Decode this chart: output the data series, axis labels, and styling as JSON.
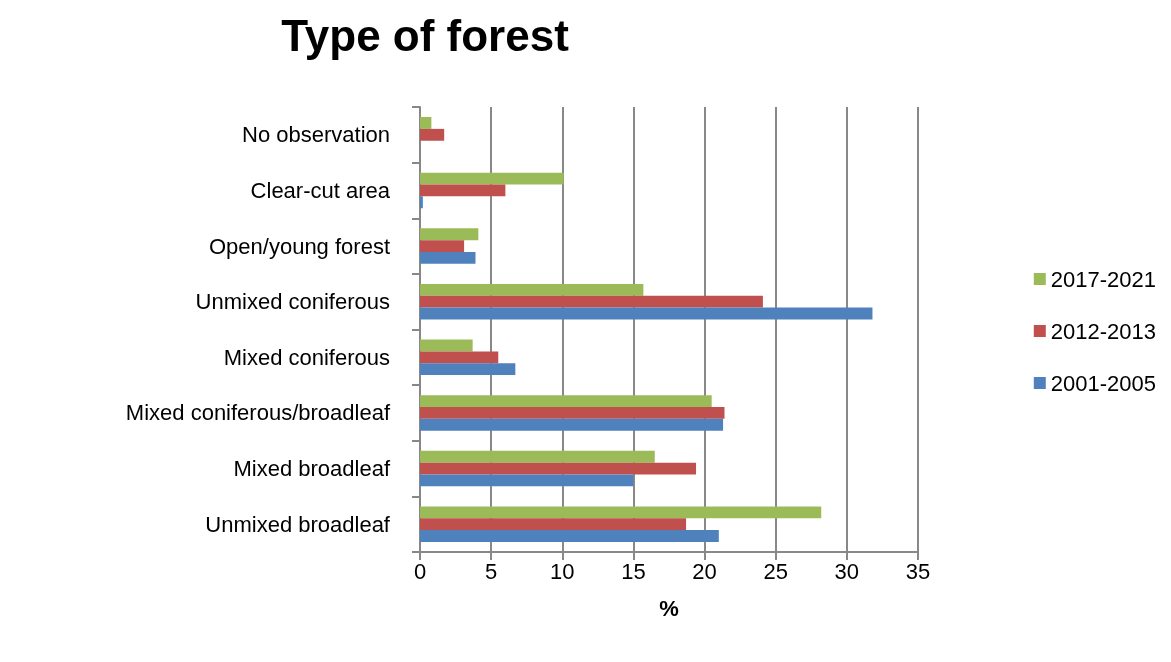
{
  "chart_data": {
    "type": "bar",
    "orientation": "horizontal",
    "title": "Type of forest",
    "xlabel": "%",
    "categories": [
      "No observation",
      "Clear-cut area",
      "Open/young forest",
      "Unmixed coniferous",
      "Mixed coniferous",
      "Mixed coniferous/broadleaf",
      "Mixed broadleaf",
      "Unmixed broadleaf"
    ],
    "series": [
      {
        "name": "2017-2021",
        "color": "#9bbb59",
        "values": [
          0.8,
          10.1,
          4.1,
          15.7,
          3.7,
          20.5,
          16.5,
          28.2
        ]
      },
      {
        "name": "2012-2013",
        "color": "#c0504d",
        "values": [
          1.7,
          6.0,
          3.1,
          24.1,
          5.5,
          21.4,
          19.4,
          18.7
        ]
      },
      {
        "name": "2001-2005",
        "color": "#4f81bd",
        "values": [
          null,
          0.2,
          3.9,
          31.8,
          6.7,
          21.3,
          15.0,
          21.0
        ]
      }
    ],
    "xlim": [
      0,
      35
    ],
    "xticks": [
      0,
      5,
      10,
      15,
      20,
      25,
      30,
      35
    ],
    "grid": "x",
    "legend": "right"
  }
}
